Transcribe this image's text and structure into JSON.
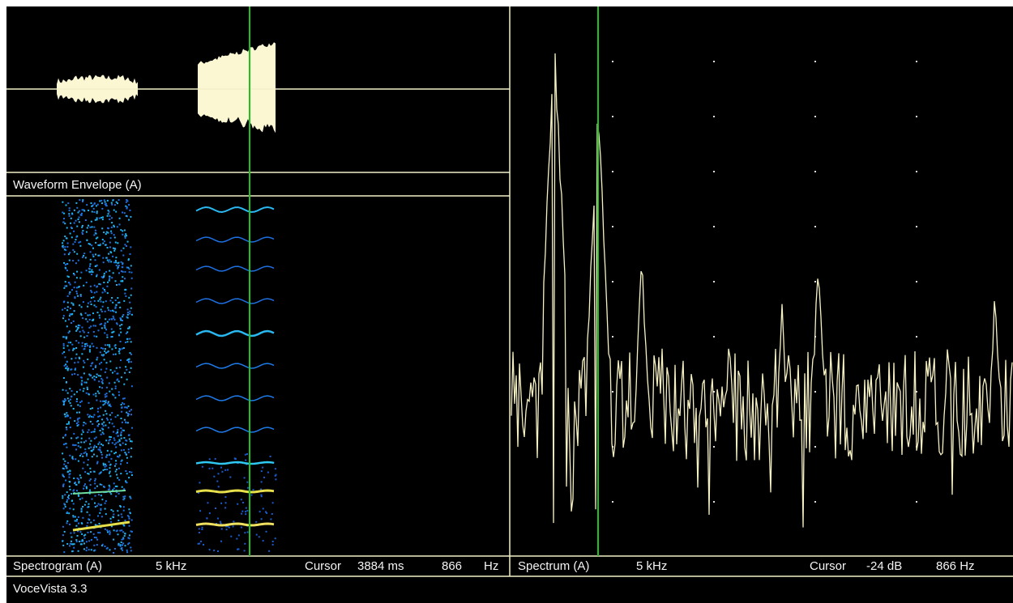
{
  "waveform": {
    "label": "Waveform Envelope (A)"
  },
  "spectrogram": {
    "label": "Spectrogram (A)",
    "range": "5 kHz",
    "cursor_label": "Cursor",
    "cursor_time": "3884 ms",
    "cursor_freq": "866",
    "freq_unit": "Hz"
  },
  "spectrum": {
    "label": "Spectrum (A)",
    "range": "5 kHz",
    "cursor_label": "Cursor",
    "cursor_level": "-24 dB",
    "cursor_freq": "866 Hz"
  },
  "status": {
    "app": "VoceVista 3.3"
  }
}
